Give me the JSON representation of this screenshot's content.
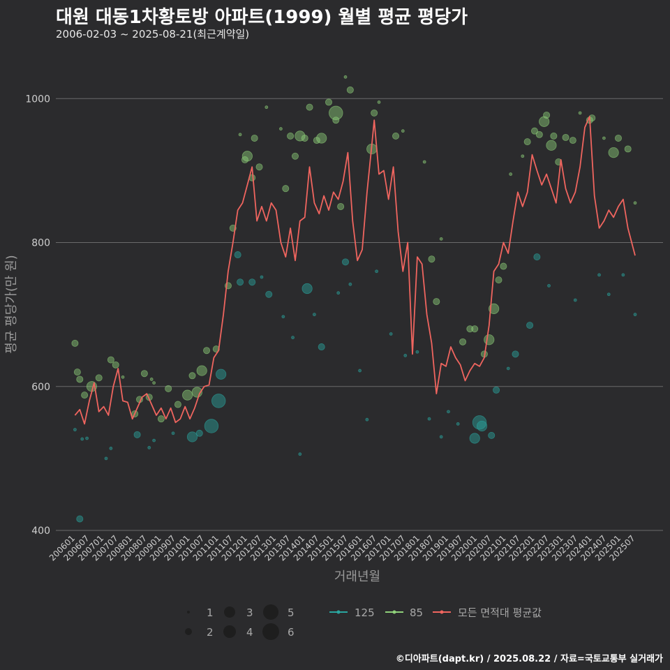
{
  "title": "대원 대동1차황토방 아파트(1999) 월별 평균 평당가",
  "subtitle": "2006-02-03 ~ 2025-08-21(최근계약일)",
  "caption": "©디아파트(dapt.kr) / 2025.08.22 / 자료=국토교통부 실거래가",
  "colors": {
    "background": "#2b2b2d",
    "grid": "#6b6b6b",
    "series_125": "#2aa6a0",
    "series_85": "#8fd17a",
    "series_avg": "#f0655f"
  },
  "chart_data": {
    "type": "line",
    "title": "대원 대동1차황토방 아파트(1999) 월별 평균 평당가",
    "xlabel": "거래년월",
    "ylabel": "평균 평당가(만 원)",
    "ylim": [
      400,
      1040
    ],
    "yticks": [
      400,
      600,
      800,
      1000
    ],
    "grid": true,
    "x_start": "2006-01",
    "x_end": "2025-08",
    "xticks": [
      "200601",
      "200607",
      "200701",
      "200707",
      "200801",
      "200807",
      "200901",
      "200907",
      "201001",
      "201007",
      "201101",
      "201107",
      "201201",
      "201207",
      "201301",
      "201307",
      "201401",
      "201407",
      "201501",
      "201507",
      "201601",
      "201607",
      "201701",
      "201707",
      "201801",
      "201807",
      "201901",
      "201907",
      "202001",
      "202007",
      "202101",
      "202107",
      "202201",
      "202207",
      "202301",
      "202307",
      "202401",
      "202407",
      "202501",
      "202507"
    ],
    "series_avg": {
      "name": "모든 면적대 평균값",
      "anchors": [
        [
          "2006-02",
          560
        ],
        [
          "2006-04",
          568
        ],
        [
          "2006-06",
          548
        ],
        [
          "2006-08",
          580
        ],
        [
          "2006-10",
          605
        ],
        [
          "2006-12",
          565
        ],
        [
          "2007-02",
          572
        ],
        [
          "2007-04",
          560
        ],
        [
          "2007-06",
          600
        ],
        [
          "2007-08",
          625
        ],
        [
          "2007-10",
          580
        ],
        [
          "2007-12",
          578
        ],
        [
          "2008-02",
          555
        ],
        [
          "2008-04",
          570
        ],
        [
          "2008-06",
          585
        ],
        [
          "2008-08",
          590
        ],
        [
          "2008-10",
          575
        ],
        [
          "2008-12",
          560
        ],
        [
          "2009-02",
          570
        ],
        [
          "2009-04",
          555
        ],
        [
          "2009-06",
          570
        ],
        [
          "2009-08",
          550
        ],
        [
          "2009-10",
          555
        ],
        [
          "2009-12",
          572
        ],
        [
          "2010-02",
          555
        ],
        [
          "2010-04",
          570
        ],
        [
          "2010-06",
          590
        ],
        [
          "2010-08",
          600
        ],
        [
          "2010-10",
          602
        ],
        [
          "2010-12",
          640
        ],
        [
          "2011-02",
          650
        ],
        [
          "2011-04",
          700
        ],
        [
          "2011-06",
          760
        ],
        [
          "2011-08",
          800
        ],
        [
          "2011-10",
          845
        ],
        [
          "2011-12",
          855
        ],
        [
          "2012-02",
          880
        ],
        [
          "2012-04",
          905
        ],
        [
          "2012-06",
          830
        ],
        [
          "2012-08",
          850
        ],
        [
          "2012-10",
          830
        ],
        [
          "2012-12",
          855
        ],
        [
          "2013-02",
          845
        ],
        [
          "2013-04",
          800
        ],
        [
          "2013-06",
          780
        ],
        [
          "2013-08",
          820
        ],
        [
          "2013-10",
          775
        ],
        [
          "2013-12",
          830
        ],
        [
          "2014-02",
          835
        ],
        [
          "2014-04",
          905
        ],
        [
          "2014-06",
          855
        ],
        [
          "2014-08",
          840
        ],
        [
          "2014-10",
          865
        ],
        [
          "2014-12",
          845
        ],
        [
          "2015-02",
          870
        ],
        [
          "2015-04",
          860
        ],
        [
          "2015-06",
          885
        ],
        [
          "2015-08",
          925
        ],
        [
          "2015-10",
          830
        ],
        [
          "2015-12",
          775
        ],
        [
          "2016-02",
          790
        ],
        [
          "2016-04",
          870
        ],
        [
          "2016-06",
          935
        ],
        [
          "2016-07",
          970
        ],
        [
          "2016-09",
          895
        ],
        [
          "2016-11",
          900
        ],
        [
          "2017-01",
          860
        ],
        [
          "2017-03",
          905
        ],
        [
          "2017-05",
          815
        ],
        [
          "2017-07",
          760
        ],
        [
          "2017-09",
          800
        ],
        [
          "2017-11",
          645
        ],
        [
          "2018-01",
          780
        ],
        [
          "2018-03",
          770
        ],
        [
          "2018-05",
          700
        ],
        [
          "2018-07",
          660
        ],
        [
          "2018-09",
          590
        ],
        [
          "2018-11",
          632
        ],
        [
          "2019-01",
          628
        ],
        [
          "2019-03",
          655
        ],
        [
          "2019-05",
          640
        ],
        [
          "2019-07",
          630
        ],
        [
          "2019-09",
          608
        ],
        [
          "2019-11",
          622
        ],
        [
          "2020-01",
          632
        ],
        [
          "2020-03",
          628
        ],
        [
          "2020-05",
          640
        ],
        [
          "2020-07",
          685
        ],
        [
          "2020-09",
          760
        ],
        [
          "2020-11",
          770
        ],
        [
          "2021-01",
          800
        ],
        [
          "2021-03",
          785
        ],
        [
          "2021-05",
          830
        ],
        [
          "2021-07",
          870
        ],
        [
          "2021-09",
          850
        ],
        [
          "2021-11",
          870
        ],
        [
          "2022-01",
          922
        ],
        [
          "2022-03",
          900
        ],
        [
          "2022-05",
          880
        ],
        [
          "2022-07",
          895
        ],
        [
          "2022-09",
          875
        ],
        [
          "2022-11",
          855
        ],
        [
          "2023-01",
          915
        ],
        [
          "2023-03",
          875
        ],
        [
          "2023-05",
          855
        ],
        [
          "2023-07",
          870
        ],
        [
          "2023-09",
          905
        ],
        [
          "2023-11",
          960
        ],
        [
          "2024-01",
          975
        ],
        [
          "2024-03",
          865
        ],
        [
          "2024-05",
          820
        ],
        [
          "2024-07",
          830
        ],
        [
          "2024-09",
          845
        ],
        [
          "2024-11",
          835
        ],
        [
          "2025-01",
          850
        ],
        [
          "2025-03",
          860
        ],
        [
          "2025-05",
          820
        ],
        [
          "2025-08",
          782
        ]
      ]
    },
    "series_85": {
      "name": "85",
      "points": [
        [
          "2006-02",
          660,
          2
        ],
        [
          "2006-03",
          620,
          2
        ],
        [
          "2006-04",
          610,
          2
        ],
        [
          "2006-06",
          588,
          2
        ],
        [
          "2006-09",
          600,
          3
        ],
        [
          "2006-12",
          612,
          2
        ],
        [
          "2007-05",
          637,
          2
        ],
        [
          "2007-07",
          630,
          2
        ],
        [
          "2007-10",
          613,
          1
        ],
        [
          "2008-03",
          562,
          2
        ],
        [
          "2008-05",
          582,
          2
        ],
        [
          "2008-07",
          618,
          2
        ],
        [
          "2008-09",
          585,
          2
        ],
        [
          "2008-10",
          610,
          1
        ],
        [
          "2008-11",
          605,
          1
        ],
        [
          "2009-02",
          555,
          2
        ],
        [
          "2009-05",
          597,
          2
        ],
        [
          "2009-09",
          575,
          2
        ],
        [
          "2010-01",
          588,
          3
        ],
        [
          "2010-03",
          615,
          2
        ],
        [
          "2010-05",
          592,
          3
        ],
        [
          "2010-07",
          622,
          3
        ],
        [
          "2010-09",
          650,
          2
        ],
        [
          "2011-01",
          652,
          2
        ],
        [
          "2011-06",
          740,
          2
        ],
        [
          "2011-08",
          820,
          2
        ],
        [
          "2011-11",
          950,
          1
        ],
        [
          "2012-01",
          915,
          2
        ],
        [
          "2012-02",
          920,
          3
        ],
        [
          "2012-04",
          890,
          2
        ],
        [
          "2012-05",
          945,
          2
        ],
        [
          "2012-07",
          905,
          2
        ],
        [
          "2012-10",
          988,
          1
        ],
        [
          "2013-04",
          958,
          1
        ],
        [
          "2013-06",
          875,
          2
        ],
        [
          "2013-08",
          948,
          2
        ],
        [
          "2013-10",
          920,
          2
        ],
        [
          "2013-12",
          948,
          3
        ],
        [
          "2014-02",
          945,
          2
        ],
        [
          "2014-04",
          988,
          2
        ],
        [
          "2014-07",
          942,
          2
        ],
        [
          "2014-09",
          945,
          3
        ],
        [
          "2014-12",
          995,
          2
        ],
        [
          "2015-03",
          980,
          4
        ],
        [
          "2015-03",
          970,
          2
        ],
        [
          "2015-05",
          850,
          2
        ],
        [
          "2015-07",
          1030,
          1
        ],
        [
          "2015-09",
          1012,
          2
        ],
        [
          "2016-06",
          930,
          3
        ],
        [
          "2016-07",
          980,
          2
        ],
        [
          "2016-09",
          995,
          1
        ],
        [
          "2017-04",
          948,
          2
        ],
        [
          "2017-07",
          955,
          1
        ],
        [
          "2018-04",
          912,
          1
        ],
        [
          "2018-07",
          777,
          2
        ],
        [
          "2018-09",
          718,
          2
        ],
        [
          "2018-11",
          805,
          1
        ],
        [
          "2019-08",
          662,
          2
        ],
        [
          "2019-11",
          680,
          2
        ],
        [
          "2020-01",
          680,
          2
        ],
        [
          "2020-05",
          645,
          2
        ],
        [
          "2020-07",
          665,
          3
        ],
        [
          "2020-09",
          708,
          3
        ],
        [
          "2020-11",
          748,
          2
        ],
        [
          "2021-01",
          767,
          2
        ],
        [
          "2021-04",
          895,
          1
        ],
        [
          "2021-09",
          920,
          1
        ],
        [
          "2021-11",
          940,
          2
        ],
        [
          "2022-02",
          955,
          2
        ],
        [
          "2022-04",
          950,
          2
        ],
        [
          "2022-06",
          968,
          3
        ],
        [
          "2022-07",
          977,
          2
        ],
        [
          "2022-09",
          935,
          3
        ],
        [
          "2022-10",
          948,
          2
        ],
        [
          "2022-12",
          912,
          2
        ],
        [
          "2023-03",
          946,
          2
        ],
        [
          "2023-06",
          942,
          2
        ],
        [
          "2023-09",
          980,
          1
        ],
        [
          "2024-01",
          970,
          2
        ],
        [
          "2024-02",
          973,
          2
        ],
        [
          "2024-07",
          945,
          1
        ],
        [
          "2024-11",
          925,
          3
        ],
        [
          "2025-01",
          945,
          2
        ],
        [
          "2025-05",
          930,
          2
        ],
        [
          "2025-08",
          855,
          1
        ]
      ]
    },
    "series_125": {
      "name": "125",
      "points": [
        [
          "2006-02",
          540,
          1
        ],
        [
          "2006-04",
          416,
          2
        ],
        [
          "2006-05",
          527,
          1
        ],
        [
          "2006-07",
          528,
          1
        ],
        [
          "2007-03",
          500,
          1
        ],
        [
          "2007-05",
          514,
          1
        ],
        [
          "2008-04",
          533,
          2
        ],
        [
          "2008-09",
          515,
          1
        ],
        [
          "2008-11",
          525,
          1
        ],
        [
          "2009-07",
          535,
          1
        ],
        [
          "2010-03",
          530,
          3
        ],
        [
          "2010-06",
          535,
          2
        ],
        [
          "2010-11",
          545,
          4
        ],
        [
          "2011-02",
          580,
          4
        ],
        [
          "2011-03",
          617,
          3
        ],
        [
          "2011-10",
          783,
          2
        ],
        [
          "2011-11",
          745,
          2
        ],
        [
          "2012-04",
          745,
          2
        ],
        [
          "2012-08",
          752,
          1
        ],
        [
          "2012-11",
          728,
          2
        ],
        [
          "2013-05",
          697,
          1
        ],
        [
          "2013-09",
          668,
          1
        ],
        [
          "2013-12",
          506,
          1
        ],
        [
          "2014-03",
          736,
          3
        ],
        [
          "2014-06",
          700,
          1
        ],
        [
          "2014-09",
          655,
          2
        ],
        [
          "2015-04",
          730,
          1
        ],
        [
          "2015-07",
          773,
          2
        ],
        [
          "2015-09",
          742,
          1
        ],
        [
          "2016-01",
          622,
          1
        ],
        [
          "2016-04",
          554,
          1
        ],
        [
          "2016-08",
          760,
          1
        ],
        [
          "2017-02",
          673,
          1
        ],
        [
          "2017-08",
          643,
          1
        ],
        [
          "2018-01",
          648,
          1
        ],
        [
          "2018-06",
          555,
          1
        ],
        [
          "2018-11",
          530,
          1
        ],
        [
          "2019-02",
          565,
          1
        ],
        [
          "2019-06",
          548,
          1
        ],
        [
          "2020-01",
          528,
          3
        ],
        [
          "2020-03",
          550,
          4
        ],
        [
          "2020-04",
          545,
          3
        ],
        [
          "2020-08",
          532,
          2
        ],
        [
          "2020-10",
          595,
          2
        ],
        [
          "2021-03",
          625,
          1
        ],
        [
          "2021-06",
          645,
          2
        ],
        [
          "2021-12",
          685,
          2
        ],
        [
          "2022-03",
          780,
          2
        ],
        [
          "2022-08",
          740,
          1
        ],
        [
          "2023-07",
          720,
          1
        ],
        [
          "2024-05",
          755,
          1
        ],
        [
          "2024-09",
          728,
          1
        ],
        [
          "2025-03",
          755,
          1
        ],
        [
          "2025-08",
          700,
          1
        ]
      ]
    },
    "legend": {
      "size_labels": [
        "1",
        "2",
        "3",
        "4",
        "5",
        "6"
      ],
      "series_labels": [
        "125",
        "85",
        "모든 면적대 평균값"
      ],
      "placement": "bottom"
    }
  }
}
